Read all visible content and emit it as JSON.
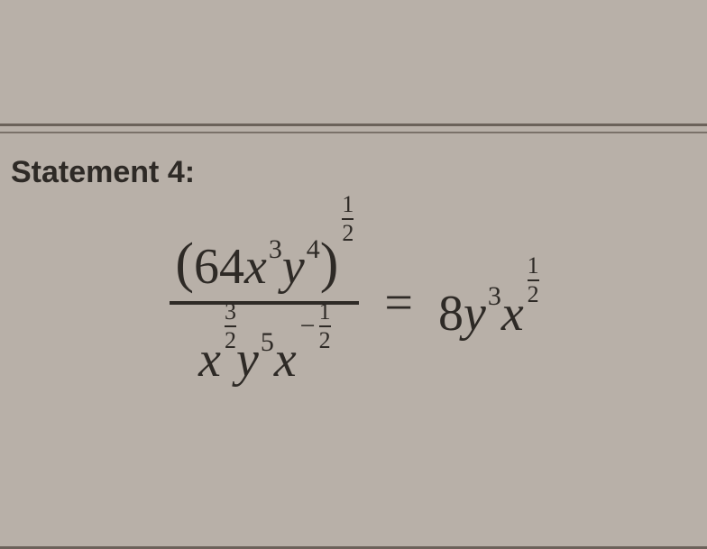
{
  "title": "Statement 4:",
  "equation": {
    "lhs": {
      "numerator": {
        "open_paren": "(",
        "coef": "64",
        "x_base": "x",
        "x_exp": "3",
        "y_base": "y",
        "y_exp": "4",
        "close_paren": ")",
        "outer_exp": {
          "num": "1",
          "den": "2"
        }
      },
      "denominator": {
        "x1_base": "x",
        "x1_exp": {
          "num": "3",
          "den": "2"
        },
        "y_base": "y",
        "y_exp": "5",
        "x2_base": "x",
        "x2_exp": {
          "sign": "−",
          "num": "1",
          "den": "2"
        }
      }
    },
    "equals": "=",
    "rhs": {
      "coef": "8",
      "y_base": "y",
      "y_exp": "3",
      "x_base": "x",
      "x_exp": {
        "num": "1",
        "den": "2"
      }
    }
  },
  "colors": {
    "background": "#b8b0a8",
    "text": "#2e2a26",
    "rule": "#6b625a"
  }
}
